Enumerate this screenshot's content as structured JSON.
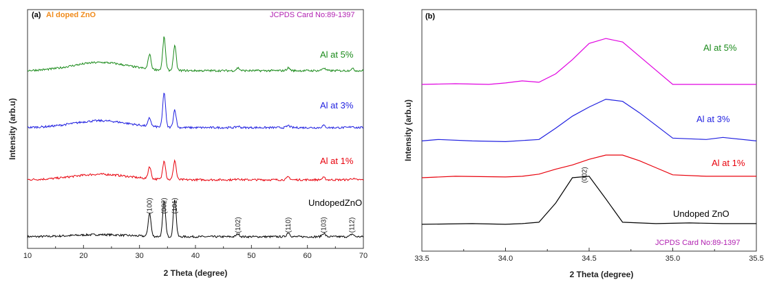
{
  "chart_data": [
    {
      "type": "line",
      "panel_label": "(a)",
      "title": "Al doped ZnO",
      "card_label": "JCPDS Card No:89-1397",
      "xlabel": "2 Theta (degree)",
      "ylabel": "Intensity (arb.u)",
      "xlim": [
        10,
        70
      ],
      "x_ticks": [
        "10",
        "20",
        "30",
        "40",
        "50",
        "60",
        "70"
      ],
      "y_ticks_labeled": false,
      "peaks": [
        {
          "label": "(100)",
          "x": 31.8
        },
        {
          "label": "(002)",
          "x": 34.4
        },
        {
          "label": "(101)",
          "x": 36.3
        },
        {
          "label": "(102)",
          "x": 47.6
        },
        {
          "label": "(110)",
          "x": 56.6
        },
        {
          "label": "(103)",
          "x": 62.9
        },
        {
          "label": "(112)",
          "x": 68.0
        }
      ],
      "series": [
        {
          "name": "UndopedZnO",
          "color": "#000000",
          "offset": 0,
          "peak_heights": [
            34,
            52,
            55,
            4,
            6,
            5,
            4
          ],
          "hump": 3
        },
        {
          "name": "Al at 1%",
          "color": "#e8000b",
          "offset": 1,
          "peak_heights": [
            18,
            28,
            28,
            2,
            4,
            3,
            2
          ],
          "hump": 8
        },
        {
          "name": "Al at 3%",
          "color": "#1f1fe0",
          "offset": 2,
          "peak_heights": [
            12,
            51,
            26,
            2,
            3,
            3,
            2
          ],
          "hump": 10
        },
        {
          "name": "Al at 5%",
          "color": "#1a8a1a",
          "offset": 3,
          "peak_heights": [
            22,
            48,
            36,
            4,
            4,
            4,
            3
          ],
          "hump": 12
        }
      ]
    },
    {
      "type": "line",
      "panel_label": "(b)",
      "card_label": "JCPDS Card No:89-1397",
      "xlabel": "2 Theta (degree)",
      "ylabel": "Intensity (arb.u)",
      "xlim": [
        33.5,
        35.5
      ],
      "x_ticks": [
        "33.5",
        "34.0",
        "34.5",
        "35.0",
        "35.5"
      ],
      "y_ticks_labeled": false,
      "peaks": [
        {
          "label": "(002)",
          "x": 34.47
        }
      ],
      "series": [
        {
          "name": "Undoped ZnO",
          "color": "#000000",
          "points": [
            [
              33.5,
              0.02
            ],
            [
              33.8,
              0.03
            ],
            [
              34.0,
              0.02
            ],
            [
              34.1,
              0.03
            ],
            [
              34.2,
              0.05
            ],
            [
              34.3,
              0.32
            ],
            [
              34.4,
              0.68
            ],
            [
              34.5,
              0.7
            ],
            [
              34.6,
              0.38
            ],
            [
              34.7,
              0.05
            ],
            [
              34.9,
              0.03
            ],
            [
              35.1,
              0.04
            ],
            [
              35.3,
              0.03
            ],
            [
              35.5,
              0.03
            ]
          ]
        },
        {
          "name": "Al at 1%",
          "color": "#e8000b",
          "points": [
            [
              33.5,
              0.68
            ],
            [
              33.7,
              0.7
            ],
            [
              34.0,
              0.69
            ],
            [
              34.1,
              0.7
            ],
            [
              34.2,
              0.73
            ],
            [
              34.3,
              0.8
            ],
            [
              34.4,
              0.86
            ],
            [
              34.5,
              0.94
            ],
            [
              34.6,
              1.0
            ],
            [
              34.7,
              1.0
            ],
            [
              34.8,
              0.92
            ],
            [
              34.9,
              0.82
            ],
            [
              35.0,
              0.72
            ],
            [
              35.2,
              0.7
            ],
            [
              35.5,
              0.7
            ]
          ]
        },
        {
          "name": "Al at 3%",
          "color": "#1f1fe0",
          "points": [
            [
              33.5,
              1.2
            ],
            [
              33.6,
              1.22
            ],
            [
              33.8,
              1.2
            ],
            [
              34.0,
              1.19
            ],
            [
              34.2,
              1.22
            ],
            [
              34.3,
              1.38
            ],
            [
              34.4,
              1.55
            ],
            [
              34.5,
              1.68
            ],
            [
              34.6,
              1.79
            ],
            [
              34.7,
              1.76
            ],
            [
              34.8,
              1.6
            ],
            [
              34.9,
              1.42
            ],
            [
              35.0,
              1.24
            ],
            [
              35.2,
              1.22
            ],
            [
              35.3,
              1.25
            ],
            [
              35.5,
              1.2
            ]
          ]
        },
        {
          "name": "Al at 5%",
          "color": "#e000e0",
          "points": [
            [
              33.5,
              2.0
            ],
            [
              33.7,
              2.01
            ],
            [
              33.9,
              2.0
            ],
            [
              34.0,
              2.02
            ],
            [
              34.1,
              2.05
            ],
            [
              34.2,
              2.03
            ],
            [
              34.3,
              2.15
            ],
            [
              34.4,
              2.35
            ],
            [
              34.5,
              2.58
            ],
            [
              34.6,
              2.65
            ],
            [
              34.7,
              2.6
            ],
            [
              34.8,
              2.4
            ],
            [
              34.9,
              2.2
            ],
            [
              35.0,
              2.0
            ],
            [
              35.2,
              2.0
            ],
            [
              35.5,
              2.0
            ]
          ]
        }
      ]
    }
  ]
}
